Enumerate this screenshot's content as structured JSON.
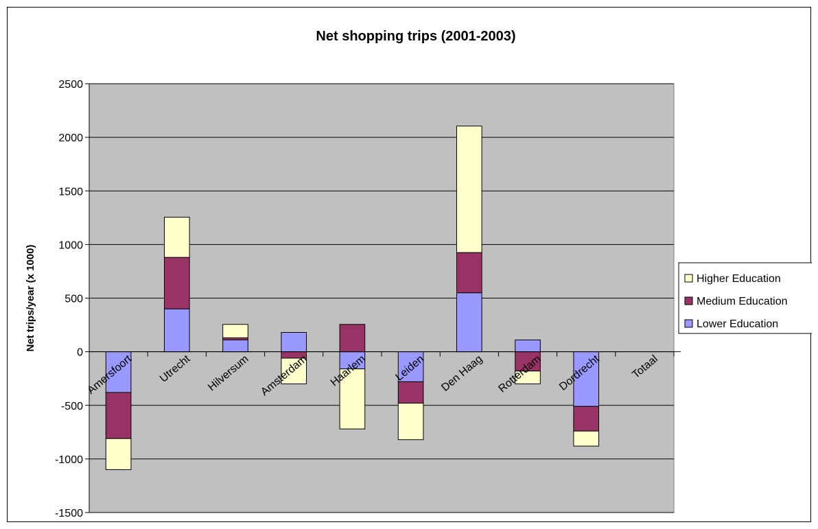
{
  "chart_data": {
    "type": "bar",
    "stacked": true,
    "title": "Net shopping trips (2001-2003)",
    "xlabel": "",
    "ylabel": "Net trips/year (x 1000)",
    "ylim": [
      -1500,
      2500
    ],
    "yticks": [
      -1500,
      -1000,
      -500,
      0,
      500,
      1000,
      1500,
      2000,
      2500
    ],
    "grid": true,
    "legend_position": "right",
    "categories": [
      "Amersfoort",
      "Utrecht",
      "Hilversum",
      "Amsterdam",
      "Haarlem",
      "Leiden",
      "Den Haag",
      "Rotterdam",
      "Dordrecht",
      "Totaal"
    ],
    "series": [
      {
        "name": "Lower Education",
        "color": "#9999ff",
        "values": [
          -380,
          400,
          110,
          180,
          -160,
          -280,
          550,
          110,
          -510,
          0
        ]
      },
      {
        "name": "Medium Education",
        "color": "#993366",
        "values": [
          -430,
          480,
          20,
          -60,
          255,
          -200,
          375,
          -180,
          -230,
          0
        ]
      },
      {
        "name": "Higher Education",
        "color": "#ffffcc",
        "values": [
          -290,
          375,
          125,
          -240,
          -560,
          -340,
          1180,
          -120,
          -140,
          0
        ]
      }
    ],
    "legend_order": [
      "Higher Education",
      "Medium Education",
      "Lower Education"
    ],
    "plot_background": "#c0c0c0"
  }
}
